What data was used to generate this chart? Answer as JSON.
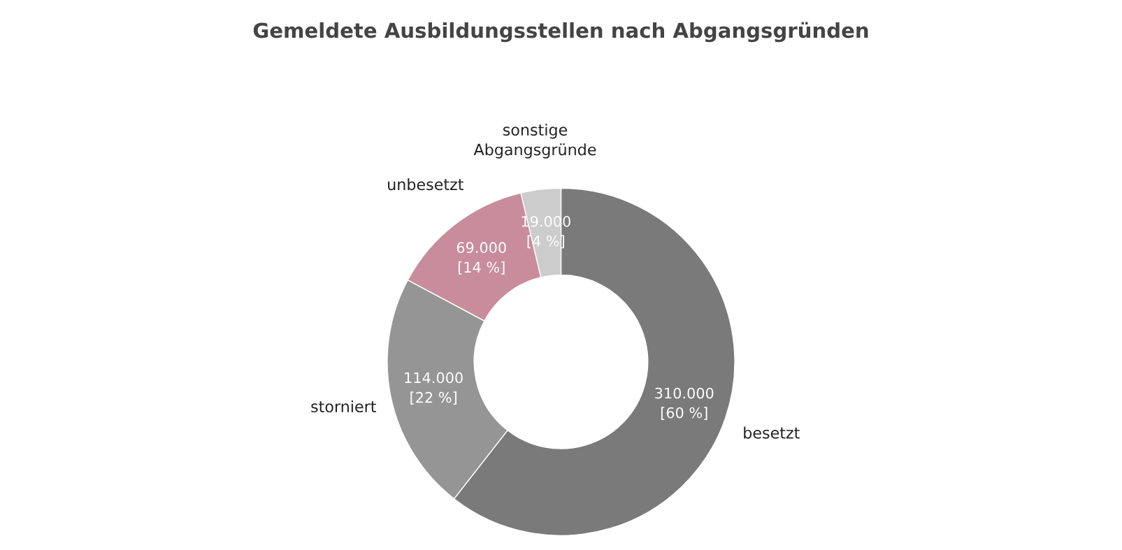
{
  "chart_data": {
    "type": "donut",
    "title": "Gemeldete Ausbildungsstellen nach Abgangsgründen",
    "categories": [
      "besetzt",
      "storniert",
      "unbesetzt",
      "sonstige\nAbgangsgründe"
    ],
    "values": [
      310000,
      114000,
      69000,
      19000
    ],
    "colors": [
      "#7a7a7a",
      "#959595",
      "#c88c9c",
      "#cccccc"
    ],
    "value_labels": [
      "310.000\n[60 %]",
      "114.000\n[22 %]",
      "69.000\n[14 %]",
      "19.000\n[4 %]"
    ],
    "legend": false
  }
}
